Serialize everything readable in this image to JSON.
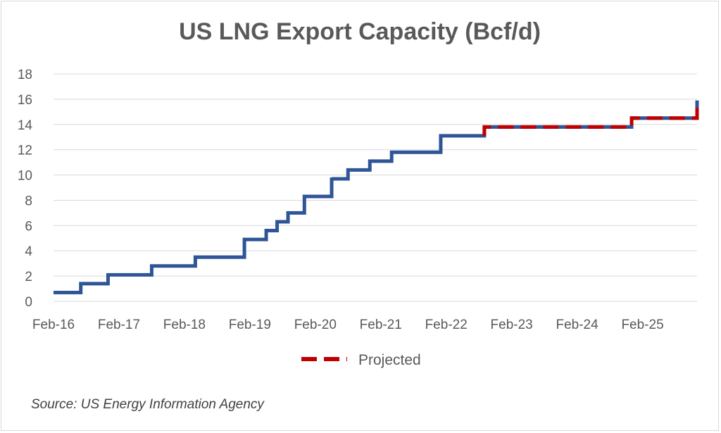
{
  "chart_data": {
    "type": "line",
    "title": "US LNG Export Capacity (Bcf/d)",
    "xlabel": "",
    "ylabel": "",
    "ylim": [
      0,
      18
    ],
    "y_ticks": [
      0,
      2,
      4,
      6,
      8,
      10,
      12,
      14,
      16,
      18
    ],
    "x_range": [
      "2016-02",
      "2025-12"
    ],
    "x_ticks": [
      {
        "date": "2016-02",
        "label": "Feb-16"
      },
      {
        "date": "2017-02",
        "label": "Feb-17"
      },
      {
        "date": "2018-02",
        "label": "Feb-18"
      },
      {
        "date": "2019-02",
        "label": "Feb-19"
      },
      {
        "date": "2020-02",
        "label": "Feb-20"
      },
      {
        "date": "2021-02",
        "label": "Feb-21"
      },
      {
        "date": "2022-02",
        "label": "Feb-22"
      },
      {
        "date": "2023-02",
        "label": "Feb-23"
      },
      {
        "date": "2024-02",
        "label": "Feb-24"
      },
      {
        "date": "2025-02",
        "label": "Feb-25"
      }
    ],
    "grid": true,
    "step": true,
    "legend_position": "bottom",
    "series": [
      {
        "color": "#2f5597",
        "style": "solid",
        "points": [
          {
            "x": "2016-02",
            "y": 0.7
          },
          {
            "x": "2016-07",
            "y": 1.4
          },
          {
            "x": "2016-12",
            "y": 2.1
          },
          {
            "x": "2017-08",
            "y": 2.8
          },
          {
            "x": "2018-04",
            "y": 3.5
          },
          {
            "x": "2019-01",
            "y": 4.9
          },
          {
            "x": "2019-05",
            "y": 5.6
          },
          {
            "x": "2019-07",
            "y": 6.3
          },
          {
            "x": "2019-09",
            "y": 7.0
          },
          {
            "x": "2019-12",
            "y": 8.3
          },
          {
            "x": "2020-05",
            "y": 9.8
          },
          {
            "x": "2020-05",
            "y": 9.7
          },
          {
            "x": "2020-08",
            "y": 10.4
          },
          {
            "x": "2020-12",
            "y": 11.1
          },
          {
            "x": "2021-04",
            "y": 11.8
          },
          {
            "x": "2022-01",
            "y": 13.1
          },
          {
            "x": "2022-09",
            "y": 13.8
          },
          {
            "x": "2024-12",
            "y": 14.5
          },
          {
            "x": "2025-12",
            "y": 15.9
          }
        ]
      },
      {
        "name": "Projected",
        "color": "#c00000",
        "style": "dashed",
        "points": [
          {
            "x": "2022-09",
            "y": 13.1
          },
          {
            "x": "2022-09",
            "y": 13.8
          },
          {
            "x": "2024-12",
            "y": 14.5
          },
          {
            "x": "2025-12",
            "y": 15.3
          }
        ]
      }
    ],
    "source": "Source: US Energy Information Agency"
  }
}
